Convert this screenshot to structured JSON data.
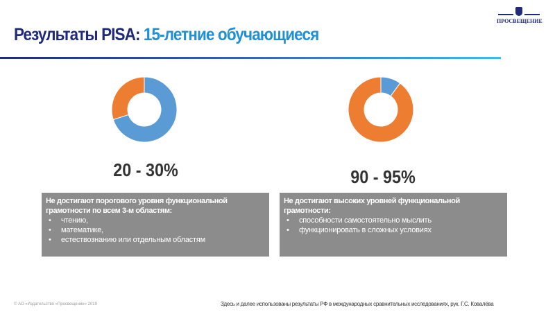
{
  "header": {
    "title_part1": "Результаты PISA: ",
    "title_part2": "15-летние обучающиеся",
    "logo_text": "ПРОСВЕЩЕНИЕ"
  },
  "colors": {
    "blue": "#5b9bd5",
    "orange": "#ed7d31",
    "box": "#8c8c8c",
    "navy": "#1f2a7a"
  },
  "chart_data": [
    {
      "type": "pie",
      "donut": true,
      "slices": [
        {
          "value": 70,
          "color": "#5b9bd5"
        },
        {
          "value": 30,
          "color": "#ed7d31"
        }
      ],
      "label": "20 - 30%"
    },
    {
      "type": "pie",
      "donut": true,
      "slices": [
        {
          "value": 10,
          "color": "#5b9bd5"
        },
        {
          "value": 90,
          "color": "#ed7d31"
        }
      ],
      "label": "90 - 95%"
    }
  ],
  "left_box": {
    "heading": "Не достигают порогового уровня функциональной грамотности по всем 3-м областям:",
    "items": [
      "чтению,",
      "математике,",
      "естествознанию или отдельным областям"
    ]
  },
  "right_box": {
    "heading": "Не достигают высоких уровней функциональной грамотности:",
    "items": [
      "способности самостоятельно мыслить",
      "функционировать в сложных условиях"
    ]
  },
  "footer": {
    "copyright": "© АО «Издательство «Просвещение» 2019",
    "note": "Здесь и далее использованы результаты РФ в международных сравнительных исследованиях, рук. Г.С. Ковалёва"
  }
}
